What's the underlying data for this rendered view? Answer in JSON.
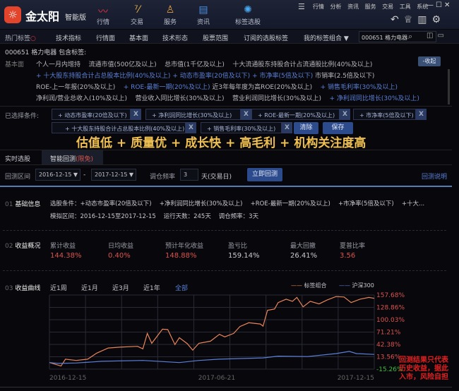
{
  "app": {
    "logo_text": "金太阳",
    "edition": "智能版",
    "logo_icon": "sun-logo-icon"
  },
  "nav": [
    {
      "label": "行情",
      "icon": "chart-line-icon"
    },
    {
      "label": "交易",
      "icon": "trade-icon"
    },
    {
      "label": "服务",
      "icon": "person-icon"
    },
    {
      "label": "资讯",
      "icon": "news-icon"
    },
    {
      "label": "标签选股",
      "icon": "lightbulb-icon"
    }
  ],
  "menu": [
    "行情",
    "分析",
    "资讯",
    "服务",
    "交易",
    "工具",
    "系统"
  ],
  "tag_tabs": [
    "热门标签",
    "技术指标",
    "行情面",
    "基本面",
    "技术形态",
    "股票范围",
    "订阅的选股标签",
    "我的标签组合 ▼"
  ],
  "search_value": "000651 格力电器",
  "info": {
    "title": "000651 格力电器 包含标签:",
    "category": "基本面",
    "collapse": "-收起",
    "rows": [
      [
        {
          "t": "个人一月内增持",
          "hl": false
        },
        {
          "t": "流通市值(500亿及以上)",
          "hl": false
        },
        {
          "t": "总市值(1千亿及以上)",
          "hl": false
        },
        {
          "t": "十大流通股东持股合计占流通股比例(40%及以上)",
          "hl": false
        }
      ],
      [
        {
          "t": "+ 十大股东持股合计占总股本比例(40%及以上)",
          "hl": true
        },
        {
          "t": "+ 动态市盈率(20倍及以下)",
          "hl": true
        },
        {
          "t": "+ 市净率(5倍及以下)",
          "hl": true
        },
        {
          "t": "市销率(2.5倍及以下)",
          "hl": false
        }
      ],
      [
        {
          "t": "ROE-上一年报(20%及以上)",
          "hl": false
        },
        {
          "t": "+ ROE-最新一期(20%及以上)",
          "hl": true
        },
        {
          "t": "近3年每年度为高ROE(20%及以上)",
          "hl": false
        },
        {
          "t": "+ 销售毛利率(30%及以上)",
          "hl": true
        }
      ],
      [
        {
          "t": "净利润/营业总收入(10%及以上)",
          "hl": false
        },
        {
          "t": "营业收入同比增长(30%及以上)",
          "hl": false
        },
        {
          "t": "营业利润同比增长(30%及以上)",
          "hl": false
        },
        {
          "t": "+ 净利润同比增长(30%及以上)",
          "hl": true
        }
      ]
    ]
  },
  "selected": {
    "label": "已选择条件:",
    "chips": [
      "+ 动态市盈率(20倍及以下)",
      "+ 净利润同比增长(30%及以上)",
      "+ ROE-最新一期(20%及以上)",
      "+ 市净率(5倍及以下)",
      "+ 十大股东持股合计占总股本比例(40%及以上)",
      "+ 销售毛利率(30%及以上)"
    ],
    "remove": "X",
    "clear": "清除",
    "save": "保存"
  },
  "slogan": "估值低 + 质量优 + 成长快 + 高毛利 + 机构关注度高",
  "tabs": {
    "realtime": "实时选股",
    "backtest": "智能回测",
    "free": "(限免)"
  },
  "backtest": {
    "range_label": "回测区间",
    "start": "2016-12-15",
    "end": "2017-12-15",
    "dash": "-",
    "freq_label": "调仓频率",
    "freq": "3",
    "freq_unit": "天(交易日)",
    "run": "立即回测",
    "help": "回测说明"
  },
  "s1": {
    "num": "01",
    "title": "基础信息",
    "conds": "选股条件：+动态市盈率(20倍及以下)　 +净利润同比增长(30%及以上)　 +ROE-最新一期(20%及以上)　 +市净率(5倍及以下)　 +十大...",
    "period": "模拟区间：2016-12-15至2017-12-15",
    "days": "运行天数：245天",
    "freq": "调仓频率：3天"
  },
  "s2": {
    "num": "02",
    "title": "收益概况",
    "stats": [
      {
        "label": "累计收益",
        "value": "144.38%",
        "color": "#d9534f"
      },
      {
        "label": "日均收益",
        "value": "0.40%",
        "color": "#d9534f"
      },
      {
        "label": "预计年化收益",
        "value": "148.88%",
        "color": "#d9534f"
      },
      {
        "label": "盈亏比",
        "value": "159.14%",
        "color": "#c8c8d0"
      },
      {
        "label": "最大回撤",
        "value": "26.41%",
        "color": "#c8c8d0"
      },
      {
        "label": "夏普比率",
        "value": "3.56",
        "color": "#d9534f"
      }
    ]
  },
  "s3": {
    "num": "03",
    "title": "收益曲线",
    "periods": [
      "近1周",
      "近1月",
      "近3月",
      "近1年",
      "全部"
    ],
    "active": "全部"
  },
  "disclaimer": "回测结果只代表历史收益，据此入市，风险自担",
  "chart_data": {
    "type": "line",
    "y_ticks": [
      "157.68%",
      "128.86%",
      "100.03%",
      "71.21%",
      "42.38%",
      "13.56%",
      "-15.26%"
    ],
    "ylim": [
      -15.26,
      157.68
    ],
    "x_ticks": [
      "2016-12-15",
      "2017-06-21",
      "2017-12-15"
    ],
    "xlim": [
      "2016-12-15",
      "2017-12-15"
    ],
    "grid": true,
    "legend": "top-right",
    "series": [
      {
        "name": "标签组合",
        "color": "#e8845a",
        "points": [
          [
            "2016-12-15",
            0
          ],
          [
            "2016-12-28",
            -8
          ],
          [
            "2017-01-02",
            8
          ],
          [
            "2017-01-14",
            5
          ],
          [
            "2017-01-27",
            8
          ],
          [
            "2017-02-06",
            22
          ],
          [
            "2017-02-19",
            34
          ],
          [
            "2017-03-04",
            36
          ],
          [
            "2017-03-24",
            38
          ],
          [
            "2017-03-30",
            32
          ],
          [
            "2017-04-04",
            68
          ],
          [
            "2017-04-09",
            45
          ],
          [
            "2017-04-21",
            78
          ],
          [
            "2017-04-27",
            77
          ],
          [
            "2017-05-05",
            42
          ],
          [
            "2017-05-10",
            58
          ],
          [
            "2017-05-19",
            44
          ],
          [
            "2017-05-25",
            29
          ],
          [
            "2017-06-01",
            45
          ],
          [
            "2017-06-14",
            50
          ],
          [
            "2017-06-24",
            66
          ],
          [
            "2017-06-30",
            60
          ],
          [
            "2017-07-10",
            68
          ],
          [
            "2017-07-17",
            84
          ],
          [
            "2017-07-27",
            93
          ],
          [
            "2017-08-09",
            90
          ],
          [
            "2017-08-12",
            85
          ],
          [
            "2017-08-17",
            122
          ],
          [
            "2017-08-25",
            125
          ],
          [
            "2017-08-29",
            140
          ],
          [
            "2017-09-07",
            148
          ],
          [
            "2017-09-14",
            143
          ],
          [
            "2017-09-19",
            152
          ],
          [
            "2017-09-26",
            130
          ],
          [
            "2017-10-04",
            143
          ],
          [
            "2017-10-14",
            137
          ],
          [
            "2017-10-23",
            146
          ],
          [
            "2017-11-02",
            154
          ],
          [
            "2017-11-11",
            153
          ],
          [
            "2017-11-19",
            140
          ],
          [
            "2017-11-29",
            148
          ],
          [
            "2017-12-09",
            152
          ],
          [
            "2017-12-15",
            150
          ]
        ]
      },
      {
        "name": "沪深300",
        "color": "#5b7fd8",
        "points": [
          [
            "2016-12-15",
            0
          ],
          [
            "2016-12-25",
            -2
          ],
          [
            "2017-01-14",
            -1
          ],
          [
            "2017-02-12",
            3
          ],
          [
            "2017-03-30",
            5
          ],
          [
            "2017-05-10",
            0
          ],
          [
            "2017-06-01",
            5
          ],
          [
            "2017-06-24",
            8
          ],
          [
            "2017-08-12",
            11
          ],
          [
            "2017-08-29",
            15
          ],
          [
            "2017-10-01",
            14
          ],
          [
            "2017-11-02",
            21
          ],
          [
            "2017-11-17",
            26
          ],
          [
            "2017-11-25",
            21
          ],
          [
            "2017-12-15",
            19
          ]
        ]
      }
    ]
  }
}
